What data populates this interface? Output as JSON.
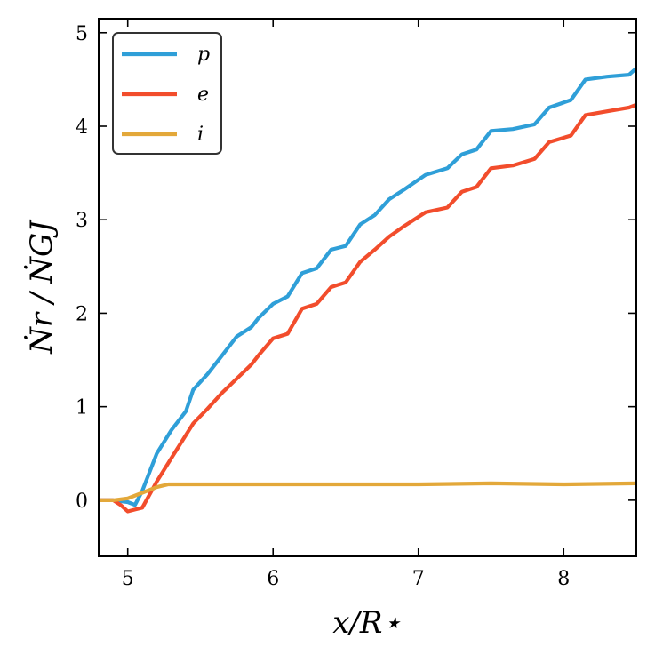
{
  "chart_data": {
    "type": "line",
    "title": "",
    "xlabel": "x/R⋆",
    "ylabel": "Ṅr / ṄGJ",
    "xlim": [
      4.8,
      8.5
    ],
    "ylim": [
      -0.6,
      5.15
    ],
    "xticks": [
      5,
      6,
      7,
      8
    ],
    "yticks": [
      0,
      1,
      2,
      3,
      4,
      5
    ],
    "xtick_labels": [
      "5",
      "6",
      "7",
      "8"
    ],
    "ytick_labels": [
      "0",
      "1",
      "2",
      "3",
      "4",
      "5"
    ],
    "legend_position": "top-left",
    "series": [
      {
        "name": "p",
        "color": "#2f9fd8",
        "x": [
          4.8,
          4.9,
          5.0,
          5.05,
          5.1,
          5.2,
          5.3,
          5.4,
          5.45,
          5.55,
          5.65,
          5.75,
          5.85,
          5.9,
          6.0,
          6.1,
          6.2,
          6.3,
          6.4,
          6.5,
          6.6,
          6.7,
          6.8,
          6.9,
          7.05,
          7.2,
          7.3,
          7.4,
          7.5,
          7.65,
          7.8,
          7.9,
          8.05,
          8.15,
          8.3,
          8.45,
          8.5
        ],
        "y": [
          0.0,
          0.0,
          -0.02,
          -0.05,
          0.1,
          0.5,
          0.75,
          0.95,
          1.18,
          1.35,
          1.55,
          1.75,
          1.85,
          1.95,
          2.1,
          2.18,
          2.43,
          2.48,
          2.68,
          2.72,
          2.95,
          3.05,
          3.22,
          3.32,
          3.48,
          3.55,
          3.7,
          3.75,
          3.95,
          3.97,
          4.02,
          4.2,
          4.28,
          4.5,
          4.53,
          4.55,
          4.62
        ]
      },
      {
        "name": "e",
        "color": "#f24d2c",
        "x": [
          4.8,
          4.9,
          4.95,
          5.0,
          5.05,
          5.1,
          5.2,
          5.3,
          5.45,
          5.55,
          5.65,
          5.75,
          5.85,
          5.9,
          6.0,
          6.1,
          6.2,
          6.3,
          6.4,
          6.5,
          6.6,
          6.7,
          6.8,
          6.9,
          7.05,
          7.2,
          7.3,
          7.4,
          7.5,
          7.65,
          7.8,
          7.9,
          8.05,
          8.15,
          8.3,
          8.45,
          8.5
        ],
        "y": [
          0.0,
          0.0,
          -0.05,
          -0.12,
          -0.1,
          -0.08,
          0.2,
          0.45,
          0.82,
          0.98,
          1.15,
          1.3,
          1.45,
          1.55,
          1.73,
          1.78,
          2.05,
          2.1,
          2.28,
          2.33,
          2.55,
          2.68,
          2.82,
          2.93,
          3.08,
          3.13,
          3.3,
          3.35,
          3.55,
          3.58,
          3.65,
          3.83,
          3.9,
          4.12,
          4.16,
          4.2,
          4.23
        ]
      },
      {
        "name": "i",
        "color": "#e3a83a",
        "x": [
          4.8,
          4.9,
          5.0,
          5.1,
          5.2,
          5.28,
          5.4,
          5.6,
          6.0,
          6.5,
          7.0,
          7.5,
          8.0,
          8.5
        ],
        "y": [
          0.0,
          0.0,
          0.02,
          0.08,
          0.14,
          0.17,
          0.17,
          0.17,
          0.17,
          0.17,
          0.17,
          0.18,
          0.17,
          0.18
        ]
      }
    ]
  }
}
